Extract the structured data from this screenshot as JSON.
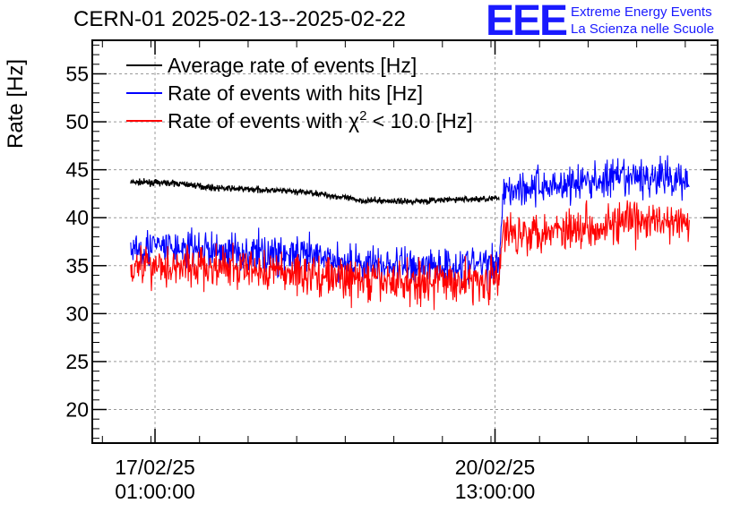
{
  "title": "CERN-01 2025-02-13--2025-02-22",
  "logo": {
    "mark": "EEE",
    "line1": "Extreme Energy Events",
    "line2": "La Scienza nelle Scuole",
    "color": "#1a1aff"
  },
  "chart_data": {
    "type": "line",
    "title": "CERN-01 2025-02-13--2025-02-22",
    "ylabel": "Rate [Hz]",
    "xlabel": "",
    "ylim": [
      16.5,
      58.5
    ],
    "yticks": [
      20,
      25,
      30,
      35,
      40,
      45,
      50,
      55
    ],
    "x_unit": "datetime",
    "xlim": [
      "2025-02-16 09:30",
      "2025-02-22 20:00"
    ],
    "xticks": [
      {
        "x": "2025-02-17 01:00",
        "date": "17/02/25",
        "time": "01:00:00"
      },
      {
        "x": "2025-02-20 13:00",
        "date": "20/02/25",
        "time": "13:00:00"
      }
    ],
    "grid": true,
    "legend_position": "top-left",
    "series": [
      {
        "name": "Average rate of events [Hz]",
        "legend_label": "Average rate of events [Hz]",
        "color": "#000000",
        "noise": 0.15,
        "x": [
          "2025-02-16 19:00",
          "2025-02-17 06:00",
          "2025-02-17 16:00",
          "2025-02-18 04:00",
          "2025-02-18 16:00",
          "2025-02-19 04:00",
          "2025-02-19 16:00",
          "2025-02-20 04:00",
          "2025-02-20 14:00"
        ],
        "values": [
          43.7,
          43.6,
          43.1,
          42.9,
          42.6,
          41.8,
          41.7,
          41.9,
          42.0
        ]
      },
      {
        "name": "Rate of events with hits [Hz]",
        "legend_label": "Rate of events with hits [Hz]",
        "color": "#0000ff",
        "noise": 1.0,
        "x": [
          "2025-02-16 19:00",
          "2025-02-17 06:00",
          "2025-02-17 16:00",
          "2025-02-18 04:00",
          "2025-02-18 16:00",
          "2025-02-19 04:00",
          "2025-02-19 16:00",
          "2025-02-20 04:00",
          "2025-02-20 14:00",
          "2025-02-20 15:00",
          "2025-02-21 04:00",
          "2025-02-21 16:00",
          "2025-02-22 04:00",
          "2025-02-22 13:00"
        ],
        "values": [
          37.0,
          36.8,
          36.5,
          36.3,
          35.9,
          35.2,
          35.0,
          35.1,
          35.2,
          43.0,
          43.4,
          43.9,
          44.2,
          44.0
        ]
      },
      {
        "name": "Rate of events with χ² < 10.0 [Hz]",
        "legend_label": "Rate of events with χ",
        "legend_sup": "2",
        "legend_tail": " < 10.0 [Hz]",
        "color": "#ff0000",
        "noise": 1.1,
        "x": [
          "2025-02-16 19:00",
          "2025-02-17 06:00",
          "2025-02-17 16:00",
          "2025-02-18 04:00",
          "2025-02-18 16:00",
          "2025-02-19 04:00",
          "2025-02-19 16:00",
          "2025-02-20 04:00",
          "2025-02-20 14:00",
          "2025-02-20 15:00",
          "2025-02-21 04:00",
          "2025-02-21 16:00",
          "2025-02-22 04:00",
          "2025-02-22 13:00"
        ],
        "values": [
          35.2,
          35.0,
          34.7,
          34.5,
          34.1,
          33.4,
          33.3,
          33.4,
          33.6,
          38.4,
          38.8,
          39.3,
          39.6,
          39.3
        ]
      }
    ]
  }
}
